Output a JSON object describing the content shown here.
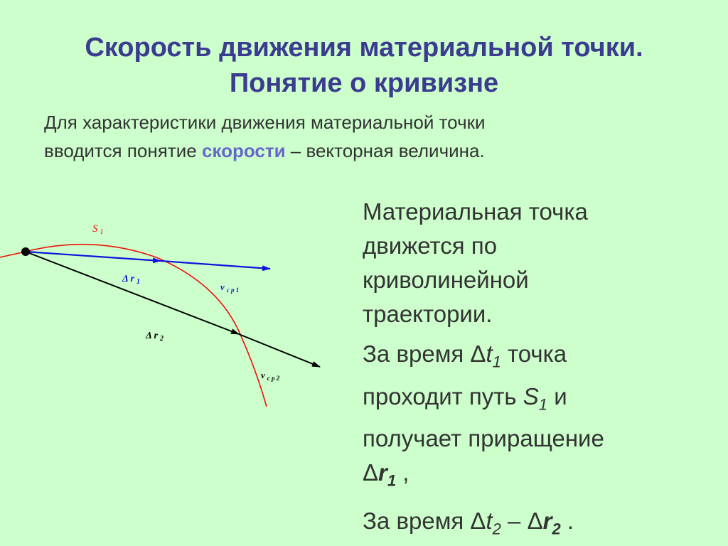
{
  "title": {
    "line1": "Скорость движения материальной точки.",
    "line2": "Понятие о кривизне"
  },
  "intro": {
    "part1": "Для характеристики движения материальной точки",
    "part2": "вводится понятие ",
    "accent": "скорости",
    "part3": " – векторная величина."
  },
  "diagram": {
    "s_label": "S",
    "s_sub": "1",
    "dr1_label": "Δ r",
    "dr1_sub": "1",
    "dr2_label": "Δ r",
    "dr2_sub": "2",
    "v1_label": "v",
    "v1_sub": "c p 1",
    "v2_label": "v",
    "v2_sub": "c p 2",
    "colors": {
      "trajectory": "#ee1111",
      "vector1": "#1111dd",
      "vector2": "#000000"
    }
  },
  "body": {
    "lines": [
      "Материальная точка",
      "движется по",
      "криволинейной",
      "траектории."
    ],
    "p2": {
      "a": "За время  Δ",
      "t": "t",
      "t_sub": "1",
      "b": "  точка",
      "c": "проходит путь ",
      "s": "S",
      "s_sub": "1",
      "d": "  и",
      "e": "получает приращение",
      "dr": "Δ",
      "r": "r",
      "r_sub": "1",
      "f": " ,"
    },
    "p3": {
      "a": "За время  Δ",
      "t": "t",
      "t_sub": "2",
      "b": " – Δ",
      "r": "r",
      "r_sub": "2",
      "c": " ."
    }
  },
  "colors": {
    "background": "#ccffcc",
    "title": "#3b3b8f",
    "accent": "#6666cc"
  }
}
